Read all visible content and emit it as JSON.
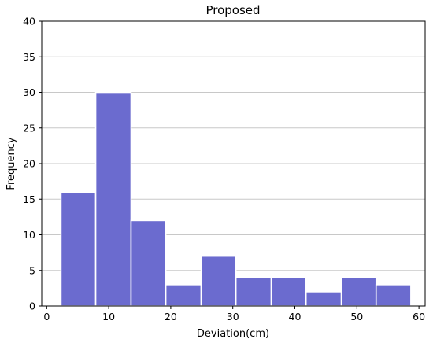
{
  "chart_data": {
    "type": "bar",
    "subtype": "histogram",
    "title": "Proposed",
    "xlabel": "Deviation(cm)",
    "ylabel": "Frequency",
    "xlim": [
      -0.8,
      61
    ],
    "ylim": [
      0,
      40
    ],
    "xticks": [
      0,
      10,
      20,
      30,
      40,
      50,
      60
    ],
    "yticks": [
      0,
      5,
      10,
      15,
      20,
      25,
      30,
      35,
      40
    ],
    "grid": "horizontal",
    "bar_color": "#6b6bcf",
    "bins": [
      {
        "x0": 2.3,
        "x1": 7.9,
        "value": 16
      },
      {
        "x0": 7.9,
        "x1": 13.6,
        "value": 30
      },
      {
        "x0": 13.6,
        "x1": 19.2,
        "value": 12
      },
      {
        "x0": 19.2,
        "x1": 24.9,
        "value": 3
      },
      {
        "x0": 24.9,
        "x1": 30.5,
        "value": 7
      },
      {
        "x0": 30.5,
        "x1": 36.2,
        "value": 4
      },
      {
        "x0": 36.2,
        "x1": 41.8,
        "value": 4
      },
      {
        "x0": 41.8,
        "x1": 47.5,
        "value": 2
      },
      {
        "x0": 47.5,
        "x1": 53.1,
        "value": 4
      },
      {
        "x0": 53.1,
        "x1": 58.7,
        "value": 3
      }
    ]
  }
}
